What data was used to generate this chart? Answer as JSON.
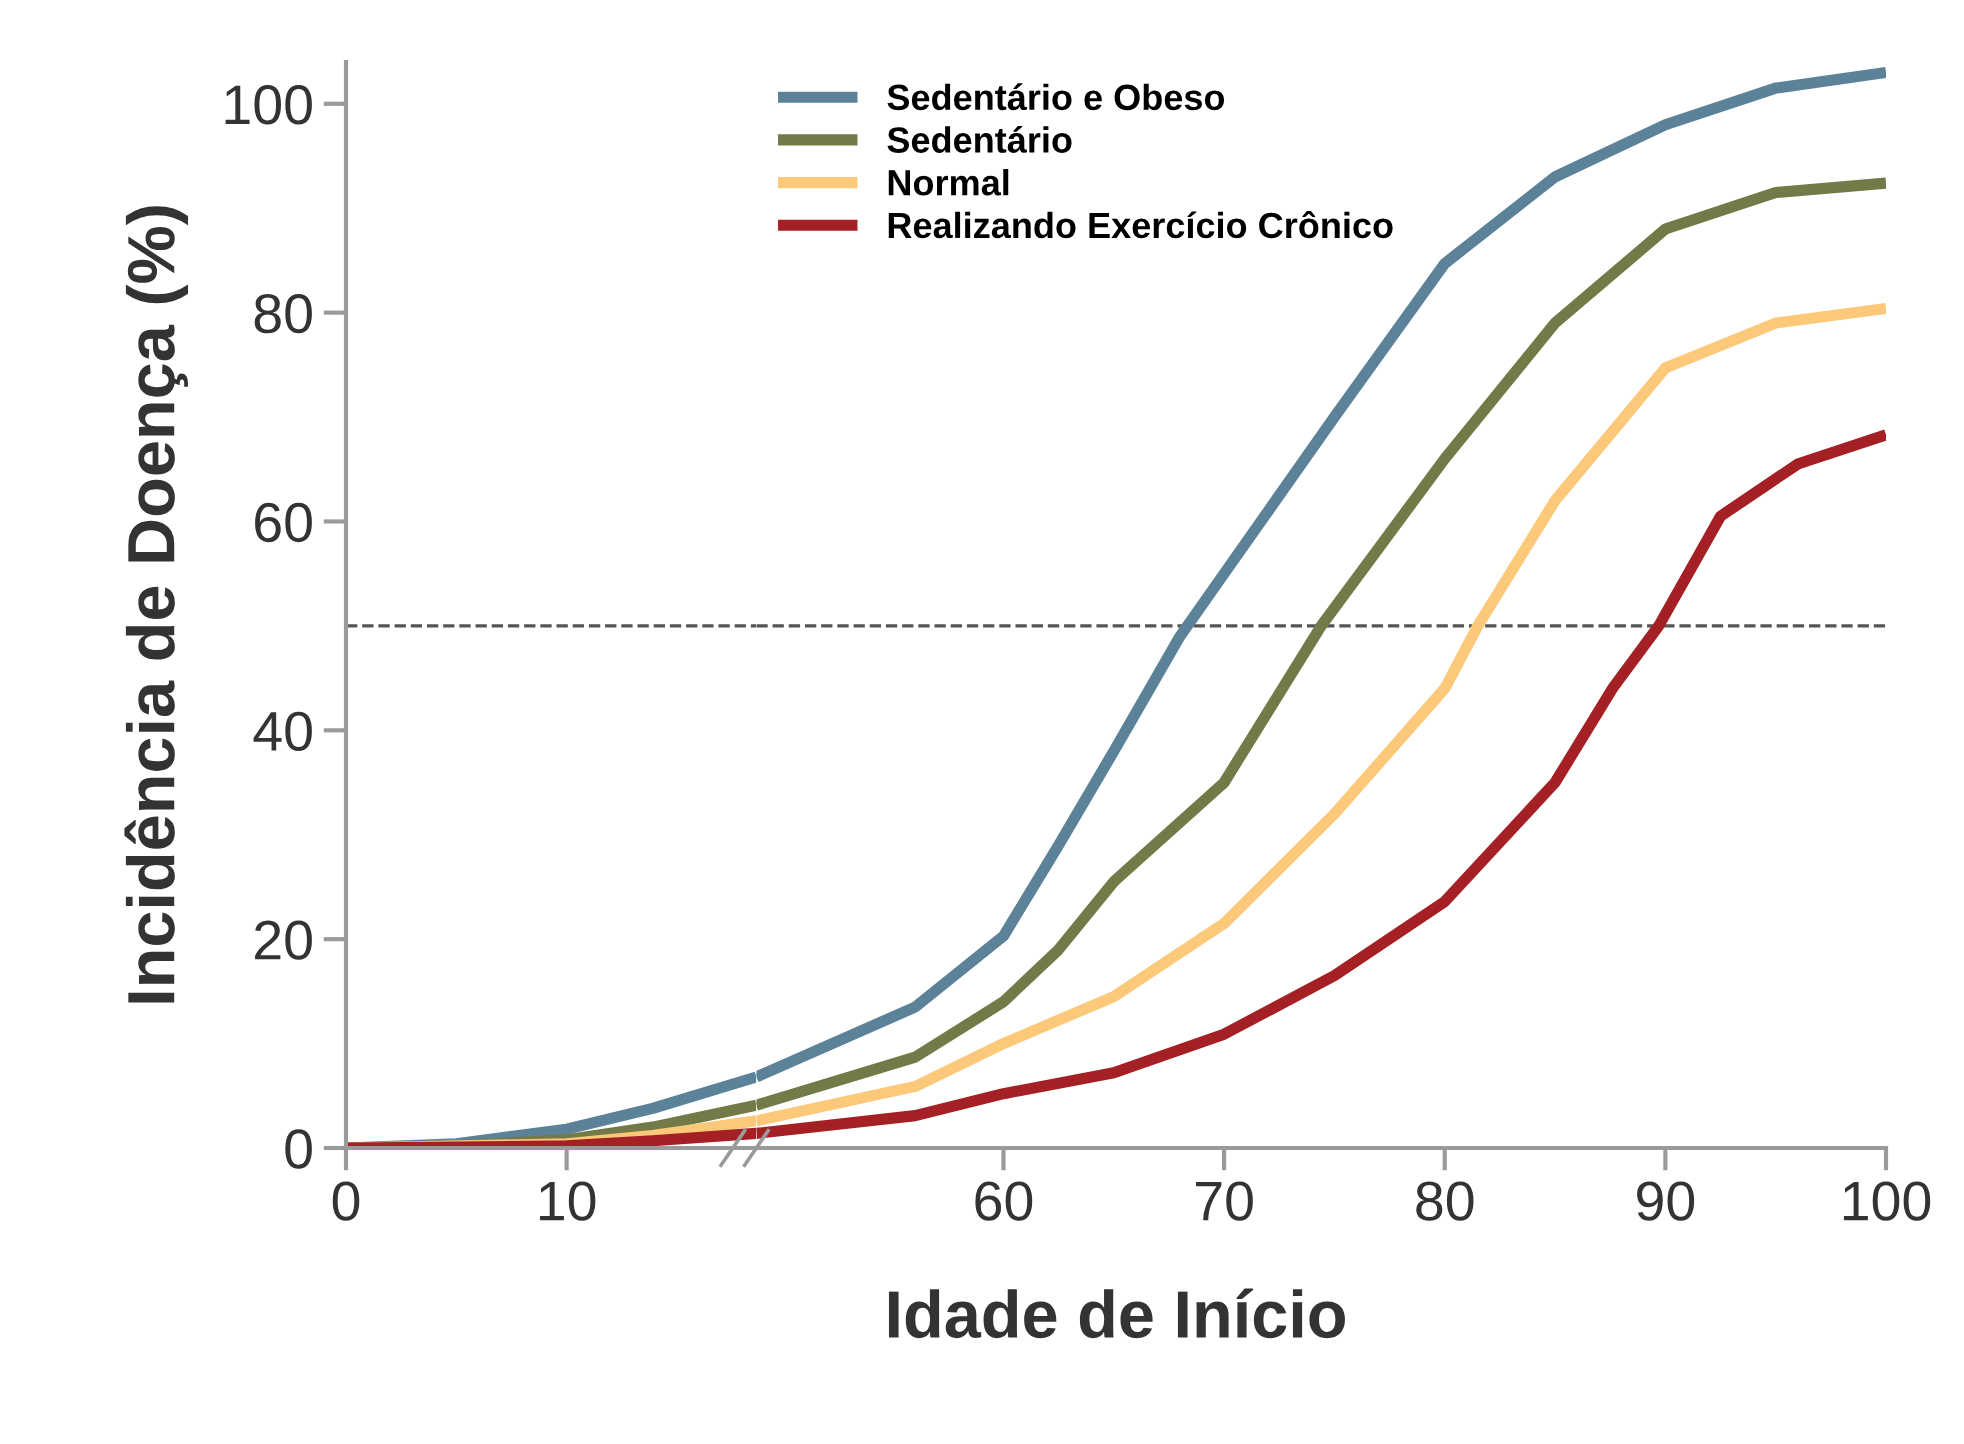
{
  "chart_data": [
    {
      "type": "line",
      "ylabel": "Incidência de Doença (%)",
      "xlim": [
        0,
        18.6
      ],
      "xticks": [
        0,
        10
      ],
      "ylim": [
        0,
        104
      ],
      "yticks": [
        0,
        20,
        40,
        60,
        80,
        100
      ],
      "grid": false,
      "line_style": "solid",
      "marker": "none",
      "ref_lines": [
        {
          "axis": "y",
          "value": 50,
          "color": "#555555",
          "line_style": "dashed"
        }
      ],
      "series": [
        {
          "color": "#5b8299",
          "x": [
            0,
            5,
            10,
            13.9,
            18.6
          ],
          "values": [
            0,
            0.4,
            1.8,
            3.8,
            6.8
          ]
        },
        {
          "color": "#737a48",
          "x": [
            0,
            5,
            10,
            13.9,
            18.6
          ],
          "values": [
            0,
            0.2,
            0.8,
            2,
            4.1
          ]
        },
        {
          "color": "#fcc97a",
          "x": [
            0,
            10,
            13.9,
            18.6
          ],
          "values": [
            0,
            0.4,
            1.2,
            2.6
          ]
        },
        {
          "color": "#a52024",
          "x": [
            0,
            10,
            13.9,
            18.6
          ],
          "values": [
            0,
            0.2,
            0.7,
            1.4
          ]
        }
      ]
    },
    {
      "type": "line",
      "xlabel": "Idade de Início",
      "xlim": [
        48.8,
        100
      ],
      "xticks": [
        60,
        70,
        80,
        90,
        100
      ],
      "ylim": [
        0,
        104
      ],
      "tick_labels": "x",
      "grid": false,
      "legend": "top left",
      "line_style": "solid",
      "marker": "none",
      "ref_lines": [
        {
          "axis": "y",
          "value": 50,
          "color": "#555555",
          "line_style": "dashed"
        }
      ],
      "series": [
        {
          "name": "Sedentário e Obeso",
          "color": "#5b8299",
          "x": [
            48.8,
            56,
            60,
            62.5,
            65,
            68,
            70,
            75,
            80,
            85,
            90,
            95,
            100
          ],
          "values": [
            6.8,
            13.5,
            20.3,
            29,
            38,
            49,
            55,
            70,
            84.7,
            93,
            98,
            101.5,
            103
          ]
        },
        {
          "name": "Sedentário",
          "color": "#737a48",
          "x": [
            48.8,
            56,
            60,
            62.5,
            65,
            70,
            74.4,
            80,
            85,
            90,
            95,
            100
          ],
          "values": [
            4.1,
            8.7,
            14,
            19,
            25.5,
            35,
            50,
            66,
            79,
            88,
            91.5,
            92.4
          ]
        },
        {
          "name": "Normal",
          "color": "#fcc97a",
          "x": [
            48.8,
            56,
            60,
            65,
            70,
            75,
            80,
            81.5,
            85,
            90,
            95,
            100
          ],
          "values": [
            2.6,
            5.9,
            10,
            14.5,
            21.5,
            32,
            44,
            50,
            62,
            74.7,
            79,
            80.4
          ]
        },
        {
          "name": "Realizando Exercício Crônico",
          "color": "#a52024",
          "x": [
            48.8,
            56,
            60,
            65,
            70,
            75,
            80,
            85,
            87.6,
            89.7,
            92.5,
            96,
            100
          ],
          "values": [
            1.4,
            3.1,
            5.2,
            7.2,
            10.9,
            16.5,
            23.6,
            35,
            44,
            50,
            60.5,
            65.5,
            68.3
          ]
        }
      ]
    }
  ]
}
